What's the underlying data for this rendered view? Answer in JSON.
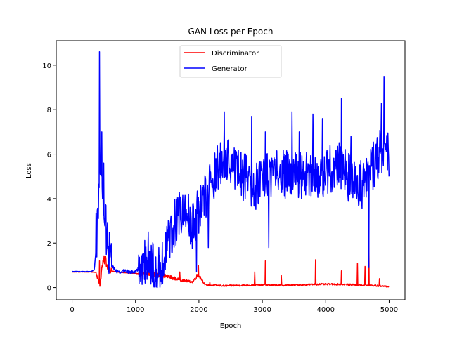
{
  "chart_data": {
    "type": "line",
    "title": "GAN Loss per Epoch",
    "xlabel": "Epoch",
    "ylabel": "Loss",
    "xlim": [
      -250,
      5250
    ],
    "ylim": [
      -0.55,
      11.1
    ],
    "xticks": [
      0,
      1000,
      2000,
      3000,
      4000,
      5000
    ],
    "yticks": [
      0,
      2,
      4,
      6,
      8,
      10
    ],
    "grid": false,
    "legend_position": "top-center",
    "series": [
      {
        "name": "Discriminator",
        "color": "#ff0000",
        "anchors": [
          [
            0,
            0.7
          ],
          [
            300,
            0.7
          ],
          [
            380,
            0.68
          ],
          [
            420,
            0.25
          ],
          [
            440,
            0.05
          ],
          [
            470,
            0.9
          ],
          [
            520,
            1.35
          ],
          [
            560,
            0.9
          ],
          [
            620,
            0.75
          ],
          [
            700,
            0.7
          ],
          [
            900,
            0.65
          ],
          [
            1100,
            0.62
          ],
          [
            1300,
            0.6
          ],
          [
            1500,
            0.5
          ],
          [
            1700,
            0.35
          ],
          [
            1900,
            0.25
          ],
          [
            1990,
            0.6
          ],
          [
            2100,
            0.12
          ],
          [
            2400,
            0.08
          ],
          [
            2700,
            0.1
          ],
          [
            3000,
            0.12
          ],
          [
            3300,
            0.1
          ],
          [
            3600,
            0.12
          ],
          [
            3900,
            0.15
          ],
          [
            4200,
            0.15
          ],
          [
            4500,
            0.12
          ],
          [
            4700,
            0.1
          ],
          [
            5000,
            0.05
          ]
        ],
        "spikes": [
          [
            430,
            1.2
          ],
          [
            520,
            1.35
          ],
          [
            1700,
            0.7
          ],
          [
            1990,
            1.0
          ],
          [
            2170,
            0.25
          ],
          [
            2880,
            0.7
          ],
          [
            3050,
            1.2
          ],
          [
            3300,
            0.55
          ],
          [
            3840,
            1.25
          ],
          [
            4250,
            0.75
          ],
          [
            4500,
            1.1
          ],
          [
            4620,
            0.95
          ],
          [
            4680,
            2.2
          ],
          [
            4850,
            0.4
          ]
        ],
        "noise": 0.18
      },
      {
        "name": "Generator",
        "color": "#0000ff",
        "anchors": [
          [
            0,
            0.72
          ],
          [
            300,
            0.72
          ],
          [
            350,
            0.8
          ],
          [
            400,
            2.5
          ],
          [
            430,
            6.0
          ],
          [
            460,
            4.0
          ],
          [
            500,
            3.5
          ],
          [
            560,
            2.0
          ],
          [
            620,
            1.0
          ],
          [
            700,
            0.72
          ],
          [
            1000,
            0.72
          ],
          [
            1100,
            1.0
          ],
          [
            1200,
            1.3
          ],
          [
            1300,
            0.9
          ],
          [
            1400,
            1.0
          ],
          [
            1500,
            1.8
          ],
          [
            1600,
            2.8
          ],
          [
            1700,
            3.3
          ],
          [
            1800,
            3.4
          ],
          [
            1900,
            2.8
          ],
          [
            2000,
            3.5
          ],
          [
            2100,
            4.0
          ],
          [
            2200,
            4.8
          ],
          [
            2300,
            5.5
          ],
          [
            2400,
            5.5
          ],
          [
            2500,
            5.8
          ],
          [
            2700,
            5.0
          ],
          [
            2900,
            4.5
          ],
          [
            3000,
            4.8
          ],
          [
            3200,
            5.2
          ],
          [
            3500,
            5.0
          ],
          [
            3800,
            5.0
          ],
          [
            4000,
            5.2
          ],
          [
            4200,
            5.5
          ],
          [
            4400,
            4.8
          ],
          [
            4600,
            4.6
          ],
          [
            4800,
            5.8
          ],
          [
            4900,
            6.2
          ],
          [
            5000,
            6.0
          ]
        ],
        "spikes": [
          [
            380,
            3.35
          ],
          [
            430,
            10.6
          ],
          [
            470,
            7.0
          ],
          [
            500,
            5.6
          ],
          [
            1200,
            2.5
          ],
          [
            1960,
            0.7
          ],
          [
            2150,
            1.8
          ],
          [
            2270,
            5.8
          ],
          [
            2400,
            7.9
          ],
          [
            2830,
            7.7
          ],
          [
            3050,
            7.0
          ],
          [
            3100,
            1.8
          ],
          [
            3470,
            7.9
          ],
          [
            3580,
            7.0
          ],
          [
            3800,
            7.8
          ],
          [
            3950,
            7.6
          ],
          [
            4250,
            8.5
          ],
          [
            4400,
            6.8
          ],
          [
            4680,
            0.9
          ],
          [
            4880,
            8.3
          ],
          [
            4920,
            9.5
          ]
        ],
        "noise": 1.1
      }
    ]
  }
}
